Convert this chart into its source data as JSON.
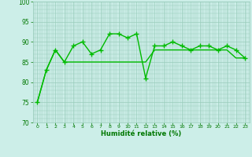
{
  "line1_x": [
    0,
    1,
    2,
    3,
    4,
    5,
    6,
    7,
    8,
    9,
    10,
    11,
    12,
    13,
    14,
    15,
    16,
    17,
    18,
    19,
    20,
    21,
    22,
    23
  ],
  "line1_y": [
    75,
    83,
    88,
    85,
    89,
    90,
    87,
    88,
    92,
    92,
    91,
    92,
    81,
    89,
    89,
    90,
    89,
    88,
    89,
    89,
    88,
    89,
    88,
    86
  ],
  "line2_x": [
    0,
    1,
    2,
    3,
    4,
    5,
    6,
    7,
    8,
    9,
    10,
    11,
    12,
    13,
    14,
    15,
    16,
    17,
    18,
    19,
    20,
    21,
    22,
    23
  ],
  "line2_y": [
    75,
    83,
    88,
    85,
    85,
    85,
    85,
    85,
    85,
    85,
    85,
    85,
    85,
    88,
    88,
    88,
    88,
    88,
    88,
    88,
    88,
    88,
    86,
    86
  ],
  "line_color": "#00bb00",
  "bg_color": "#cceee8",
  "grid_color": "#99ccbb",
  "xlabel": "Humidité relative (%)",
  "xlabel_color": "#007700",
  "tick_color": "#007700",
  "ylim": [
    70,
    100
  ],
  "xlim_min": -0.5,
  "xlim_max": 23.5,
  "yticks": [
    70,
    75,
    80,
    85,
    90,
    95,
    100
  ],
  "xticks": [
    0,
    1,
    2,
    3,
    4,
    5,
    6,
    7,
    8,
    9,
    10,
    11,
    12,
    13,
    14,
    15,
    16,
    17,
    18,
    19,
    20,
    21,
    22,
    23
  ]
}
